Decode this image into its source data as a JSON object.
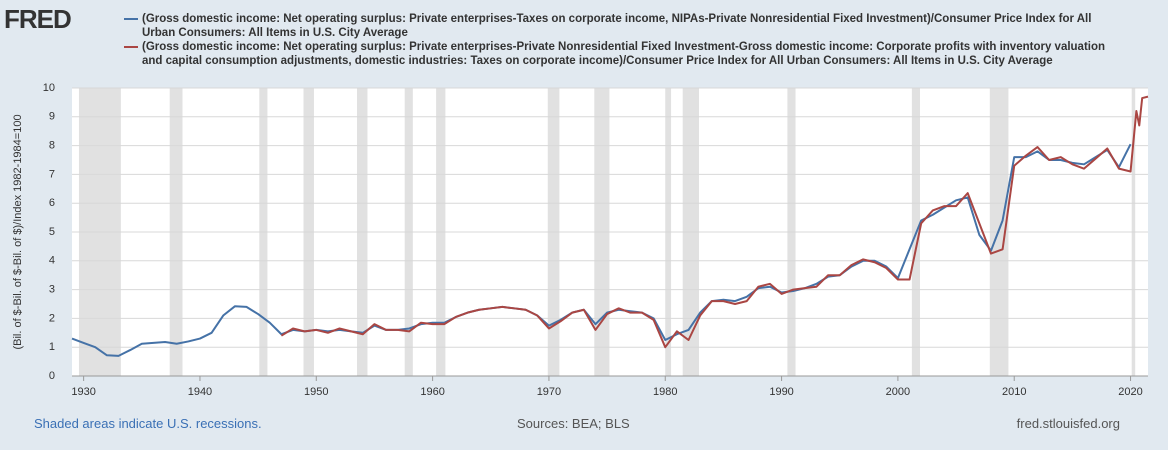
{
  "logo": "FRED",
  "chart_data": {
    "type": "line",
    "ylabel": "(Bil. of $-Bil. of $-Bil. of $)/Index 1982-1984=100",
    "xlim": [
      1929,
      2021.5
    ],
    "ylim": [
      0,
      10
    ],
    "xticks": [
      1930,
      1940,
      1950,
      1960,
      1970,
      1980,
      1990,
      2000,
      2010,
      2020
    ],
    "yticks": [
      0,
      1,
      2,
      3,
      4,
      5,
      6,
      7,
      8,
      9,
      10
    ],
    "grid": true,
    "recession_color": "#e1e1e1",
    "recessions": [
      [
        1929.6,
        1933.2
      ],
      [
        1937.4,
        1938.5
      ],
      [
        1945.1,
        1945.8
      ],
      [
        1948.9,
        1949.8
      ],
      [
        1953.5,
        1954.4
      ],
      [
        1957.6,
        1958.3
      ],
      [
        1960.3,
        1961.1
      ],
      [
        1969.9,
        1970.9
      ],
      [
        1973.9,
        1975.2
      ],
      [
        1980.0,
        1980.5
      ],
      [
        1981.5,
        1982.9
      ],
      [
        1990.5,
        1991.2
      ],
      [
        2001.2,
        2001.9
      ],
      [
        2007.9,
        2009.5
      ],
      [
        2020.1,
        2020.4
      ]
    ],
    "series": [
      {
        "name": "(Gross domestic income: Net operating surplus: Private enterprises-Taxes on corporate income, NIPAs-Private Nonresidential Fixed Investment)/Consumer Price Index for All Urban Consumers: All Items in U.S. City Average",
        "color": "#4572a7",
        "x": [
          1929,
          1930,
          1931,
          1932,
          1933,
          1934,
          1935,
          1936,
          1937,
          1938,
          1939,
          1940,
          1941,
          1942,
          1943,
          1944,
          1945,
          1946,
          1947,
          1948,
          1949,
          1950,
          1951,
          1952,
          1953,
          1954,
          1955,
          1956,
          1957,
          1958,
          1959,
          1960,
          1961,
          1962,
          1963,
          1964,
          1965,
          1966,
          1967,
          1968,
          1969,
          1970,
          1971,
          1972,
          1973,
          1974,
          1975,
          1976,
          1977,
          1978,
          1979,
          1980,
          1981,
          1982,
          1983,
          1984,
          1985,
          1986,
          1987,
          1988,
          1989,
          1990,
          1991,
          1992,
          1993,
          1994,
          1995,
          1996,
          1997,
          1998,
          1999,
          2000,
          2001,
          2002,
          2003,
          2004,
          2005,
          2006,
          2007,
          2008,
          2009,
          2010,
          2011,
          2012,
          2013,
          2014,
          2015,
          2016,
          2017,
          2018,
          2019,
          2020
        ],
        "values": [
          1.3,
          1.15,
          1.0,
          0.72,
          0.7,
          0.9,
          1.12,
          1.15,
          1.18,
          1.12,
          1.2,
          1.3,
          1.5,
          2.1,
          2.42,
          2.4,
          2.15,
          1.85,
          1.45,
          1.6,
          1.55,
          1.6,
          1.55,
          1.6,
          1.55,
          1.5,
          1.75,
          1.6,
          1.6,
          1.65,
          1.8,
          1.85,
          1.85,
          2.05,
          2.2,
          2.3,
          2.35,
          2.4,
          2.35,
          2.3,
          2.1,
          1.75,
          1.95,
          2.2,
          2.3,
          1.8,
          2.2,
          2.3,
          2.25,
          2.2,
          2.0,
          1.25,
          1.45,
          1.6,
          2.2,
          2.6,
          2.65,
          2.6,
          2.75,
          3.05,
          3.1,
          2.9,
          2.95,
          3.05,
          3.2,
          3.45,
          3.5,
          3.8,
          4.0,
          4.0,
          3.8,
          3.4,
          4.4,
          5.4,
          5.6,
          5.85,
          6.1,
          6.2,
          4.9,
          4.35,
          5.4,
          7.6,
          7.6,
          7.8,
          7.5,
          7.5,
          7.4,
          7.35,
          7.6,
          7.85,
          7.25,
          8.05
        ]
      },
      {
        "name": "(Gross domestic income: Net operating surplus: Private enterprises-Private Nonresidential Fixed Investment-Gross domestic income: Corporate profits with inventory valuation and capital consumption adjustments, domestic industries: Taxes on corporate income)/Consumer Price Index for All Urban Consumers: All Items in U.S. City Average",
        "color": "#aa4643",
        "x": [
          1947,
          1948,
          1949,
          1950,
          1951,
          1952,
          1953,
          1954,
          1955,
          1956,
          1957,
          1958,
          1959,
          1960,
          1961,
          1962,
          1963,
          1964,
          1965,
          1966,
          1967,
          1968,
          1969,
          1970,
          1971,
          1972,
          1973,
          1974,
          1975,
          1976,
          1977,
          1978,
          1979,
          1980,
          1981,
          1982,
          1983,
          1984,
          1985,
          1986,
          1987,
          1988,
          1989,
          1990,
          1991,
          1992,
          1993,
          1994,
          1995,
          1996,
          1997,
          1998,
          1999,
          2000,
          2001,
          2002,
          2003,
          2004,
          2005,
          2006,
          2007,
          2008,
          2009,
          2010,
          2011,
          2012,
          2013,
          2014,
          2015,
          2016,
          2017,
          2018,
          2019,
          2020,
          2020.5,
          2020.75,
          2021,
          2021.5
        ],
        "values": [
          1.4,
          1.65,
          1.55,
          1.6,
          1.5,
          1.65,
          1.55,
          1.45,
          1.8,
          1.6,
          1.6,
          1.55,
          1.85,
          1.8,
          1.8,
          2.05,
          2.2,
          2.3,
          2.35,
          2.4,
          2.35,
          2.3,
          2.1,
          1.65,
          1.9,
          2.2,
          2.3,
          1.6,
          2.15,
          2.35,
          2.2,
          2.2,
          1.95,
          1.0,
          1.55,
          1.25,
          2.1,
          2.6,
          2.6,
          2.5,
          2.6,
          3.1,
          3.2,
          2.85,
          3.0,
          3.05,
          3.1,
          3.5,
          3.5,
          3.85,
          4.05,
          3.95,
          3.75,
          3.35,
          3.35,
          5.3,
          5.75,
          5.9,
          5.9,
          6.35,
          5.3,
          4.25,
          4.4,
          7.3,
          7.65,
          7.95,
          7.5,
          7.6,
          7.35,
          7.2,
          7.55,
          7.9,
          7.2,
          7.1,
          9.2,
          8.7,
          9.65,
          9.7
        ]
      }
    ],
    "note": "Shaded areas indicate U.S. recessions.",
    "sources": "Sources: BEA; BLS",
    "site": "fred.stlouisfed.org"
  }
}
